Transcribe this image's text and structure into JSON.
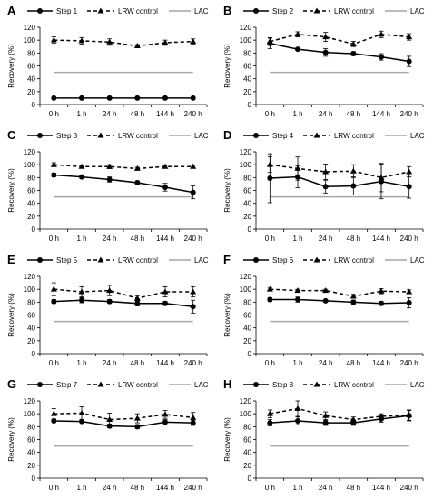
{
  "chart_data": [
    {
      "panel": "A",
      "type": "line",
      "categories": [
        "0 h",
        "1 h",
        "24 h",
        "48 h",
        "144 h",
        "240 h"
      ],
      "ylabel": "Recovery (%)",
      "ylim": [
        0,
        120
      ],
      "yticks": [
        0,
        20,
        40,
        60,
        80,
        100,
        120
      ],
      "legend": [
        "Step 1",
        "LRW control",
        "LAC"
      ],
      "series": [
        {
          "name": "Step 1",
          "values": [
            10,
            10,
            10,
            10,
            10,
            10
          ],
          "errors": [
            0,
            0,
            0,
            0,
            0,
            0
          ]
        },
        {
          "name": "LRW control",
          "values": [
            100,
            99,
            97,
            91,
            96,
            98
          ],
          "errors": [
            5,
            5,
            5,
            2,
            4,
            4
          ]
        },
        {
          "name": "LAC",
          "values": [
            50,
            50,
            50,
            50,
            50,
            50
          ]
        }
      ]
    },
    {
      "panel": "B",
      "type": "line",
      "categories": [
        "0 h",
        "1 h",
        "24 h",
        "48 h",
        "144 h",
        "240 h"
      ],
      "ylabel": "Recovery (%)",
      "ylim": [
        0,
        120
      ],
      "yticks": [
        0,
        20,
        40,
        60,
        80,
        100,
        120
      ],
      "legend": [
        "Step 2",
        "LRW control",
        "LAC"
      ],
      "series": [
        {
          "name": "Step 2",
          "values": [
            95,
            86,
            81,
            79,
            74,
            67
          ],
          "errors": [
            8,
            2,
            6,
            3,
            5,
            8
          ]
        },
        {
          "name": "LRW control",
          "values": [
            98,
            109,
            105,
            94,
            109,
            105
          ],
          "errors": [
            6,
            4,
            7,
            4,
            5,
            5
          ]
        },
        {
          "name": "LAC",
          "values": [
            50,
            50,
            50,
            50,
            50,
            50
          ]
        }
      ]
    },
    {
      "panel": "C",
      "type": "line",
      "categories": [
        "0 h",
        "1 h",
        "24 h",
        "48 h",
        "144 h",
        "240 h"
      ],
      "ylabel": "Recovery (%)",
      "ylim": [
        0,
        120
      ],
      "yticks": [
        0,
        20,
        40,
        60,
        80,
        100,
        120
      ],
      "legend": [
        "Step 3",
        "LRW control",
        "LAC"
      ],
      "series": [
        {
          "name": "Step 3",
          "values": [
            84,
            81,
            77,
            72,
            65,
            57
          ],
          "errors": [
            3,
            2,
            4,
            3,
            6,
            10
          ]
        },
        {
          "name": "LRW control",
          "values": [
            100,
            97,
            97,
            94,
            97,
            97
          ],
          "errors": [
            3,
            2,
            3,
            2,
            2,
            2
          ]
        },
        {
          "name": "LAC",
          "values": [
            50,
            50,
            50,
            50,
            50,
            50
          ]
        }
      ]
    },
    {
      "panel": "D",
      "type": "line",
      "categories": [
        "0 h",
        "1 h",
        "24 h",
        "48 h",
        "144 h",
        "240 h"
      ],
      "ylabel": "Recovery (%)",
      "ylim": [
        0,
        120
      ],
      "yticks": [
        0,
        20,
        40,
        60,
        80,
        100,
        120
      ],
      "legend": [
        "Step 4",
        "LRW control",
        "LAC"
      ],
      "series": [
        {
          "name": "Step 4",
          "values": [
            79,
            81,
            66,
            67,
            74,
            66
          ],
          "errors": [
            38,
            17,
            10,
            14,
            27,
            18
          ]
        },
        {
          "name": "LRW control",
          "values": [
            100,
            94,
            89,
            90,
            80,
            89
          ],
          "errors": [
            12,
            18,
            12,
            10,
            22,
            8
          ]
        },
        {
          "name": "LAC",
          "values": [
            50,
            50,
            50,
            50,
            50,
            50
          ]
        }
      ]
    },
    {
      "panel": "E",
      "type": "line",
      "categories": [
        "0 h",
        "1 h",
        "24 h",
        "48 h",
        "144 h",
        "240 h"
      ],
      "ylabel": "Recovery (%)",
      "ylim": [
        0,
        120
      ],
      "yticks": [
        0,
        20,
        40,
        60,
        80,
        100,
        120
      ],
      "legend": [
        "Step 5",
        "LRW control",
        "LAC"
      ],
      "series": [
        {
          "name": "Step 5",
          "values": [
            81,
            83,
            81,
            78,
            78,
            73
          ],
          "errors": [
            3,
            4,
            3,
            4,
            3,
            10
          ]
        },
        {
          "name": "LRW control",
          "values": [
            100,
            96,
            98,
            86,
            96,
            96
          ],
          "errors": [
            10,
            8,
            8,
            4,
            8,
            8
          ]
        },
        {
          "name": "LAC",
          "values": [
            50,
            50,
            50,
            50,
            50,
            50
          ]
        }
      ]
    },
    {
      "panel": "F",
      "type": "line",
      "categories": [
        "0 h",
        "1 h",
        "24 h",
        "48 h",
        "144 h",
        "240 h"
      ],
      "ylabel": "Recovery (%)",
      "ylim": [
        0,
        120
      ],
      "yticks": [
        0,
        20,
        40,
        60,
        80,
        100,
        120
      ],
      "legend": [
        "Step 6",
        "LRW control",
        "LAC"
      ],
      "series": [
        {
          "name": "Step 6",
          "values": [
            84,
            84,
            82,
            80,
            78,
            79
          ],
          "errors": [
            3,
            4,
            2,
            3,
            3,
            8
          ]
        },
        {
          "name": "LRW control",
          "values": [
            100,
            98,
            98,
            89,
            97,
            96
          ],
          "errors": [
            2,
            2,
            2,
            3,
            4,
            3
          ]
        },
        {
          "name": "LAC",
          "values": [
            50,
            50,
            50,
            50,
            50,
            50
          ]
        }
      ]
    },
    {
      "panel": "G",
      "type": "line",
      "categories": [
        "0 h",
        "1 h",
        "24 h",
        "48 h",
        "144 h",
        "240 h"
      ],
      "ylabel": "Recovery (%)",
      "ylim": [
        0,
        120
      ],
      "yticks": [
        0,
        20,
        40,
        60,
        80,
        100,
        120
      ],
      "legend": [
        "Step 7",
        "LRW control",
        "LAC"
      ],
      "series": [
        {
          "name": "Step 7",
          "values": [
            89,
            88,
            81,
            80,
            87,
            86
          ],
          "errors": [
            2,
            2,
            3,
            3,
            4,
            4
          ]
        },
        {
          "name": "LRW control",
          "values": [
            100,
            101,
            91,
            93,
            99,
            94
          ],
          "errors": [
            8,
            10,
            10,
            7,
            6,
            8
          ]
        },
        {
          "name": "LAC",
          "values": [
            50,
            50,
            50,
            50,
            50,
            50
          ]
        }
      ]
    },
    {
      "panel": "H",
      "type": "line",
      "categories": [
        "0 h",
        "1 h",
        "24 h",
        "48 h",
        "144 h",
        "240 h"
      ],
      "ylabel": "Recovery (%)",
      "ylim": [
        0,
        120
      ],
      "yticks": [
        0,
        20,
        40,
        60,
        80,
        100,
        120
      ],
      "legend": [
        "Step 8",
        "LRW control",
        "LAC"
      ],
      "series": [
        {
          "name": "Step 8",
          "values": [
            86,
            89,
            86,
            86,
            92,
            97
          ],
          "errors": [
            5,
            6,
            4,
            4,
            5,
            8
          ]
        },
        {
          "name": "LRW control",
          "values": [
            100,
            108,
            97,
            91,
            96,
            98
          ],
          "errors": [
            6,
            12,
            6,
            4,
            4,
            8
          ]
        },
        {
          "name": "LAC",
          "values": [
            50,
            50,
            50,
            50,
            50,
            50
          ]
        }
      ]
    }
  ]
}
